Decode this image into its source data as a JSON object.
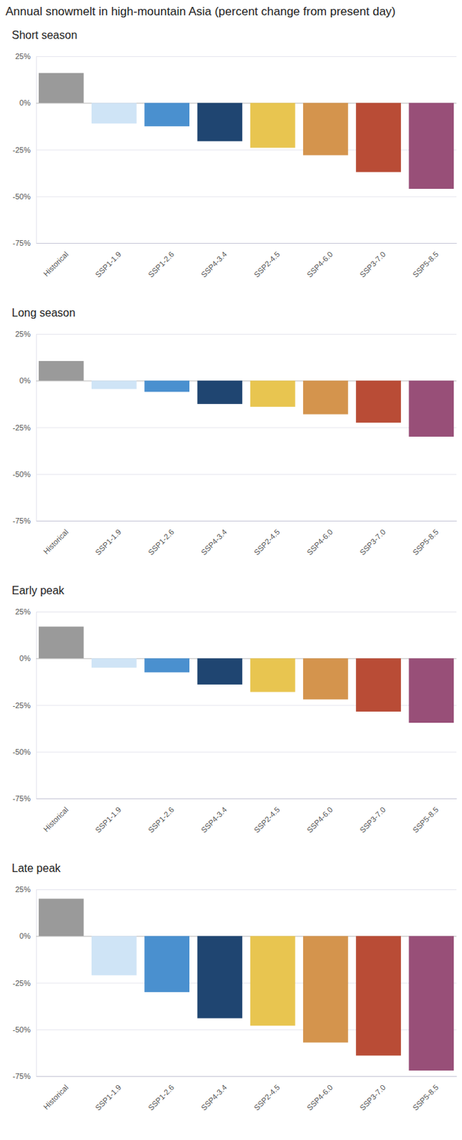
{
  "title": "Annual snowmelt in high-mountain Asia (percent change from present day)",
  "chart_data": [
    {
      "type": "bar",
      "title": "Short season",
      "categories": [
        "Historical",
        "SSP1-1.9",
        "SSP1-2.6",
        "SSP4-3.4",
        "SSP2-4.5",
        "SSP4-6.0",
        "SSP3-7.0",
        "SSP5-8.5"
      ],
      "values": [
        16,
        -11,
        -12.5,
        -20.5,
        -24,
        -28,
        -37,
        -46
      ],
      "colors": [
        "#9a9a9a",
        "#cfe4f6",
        "#4a90cf",
        "#1f4571",
        "#e8c550",
        "#d4944d",
        "#b94c36",
        "#984f78"
      ],
      "ylim": [
        -75,
        25
      ],
      "yticks": [
        {
          "value": 25,
          "label": "25%"
        },
        {
          "value": 0,
          "label": "0%"
        },
        {
          "value": -25,
          "label": "-25%"
        },
        {
          "value": -50,
          "label": "-50%"
        },
        {
          "value": -75,
          "label": "-75%"
        }
      ],
      "grid": true
    },
    {
      "type": "bar",
      "title": "Long season",
      "categories": [
        "Historical",
        "SSP1-1.9",
        "SSP1-2.6",
        "SSP4-3.4",
        "SSP2-4.5",
        "SSP4-6.0",
        "SSP3-7.0",
        "SSP5-8.5"
      ],
      "values": [
        10.5,
        -4.5,
        -6,
        -12.5,
        -14,
        -18,
        -22.5,
        -30
      ],
      "colors": [
        "#9a9a9a",
        "#cfe4f6",
        "#4a90cf",
        "#1f4571",
        "#e8c550",
        "#d4944d",
        "#b94c36",
        "#984f78"
      ],
      "ylim": [
        -75,
        25
      ],
      "yticks": [
        {
          "value": 25,
          "label": "25%"
        },
        {
          "value": 0,
          "label": "0%"
        },
        {
          "value": -25,
          "label": "-25%"
        },
        {
          "value": -50,
          "label": "-50%"
        },
        {
          "value": -75,
          "label": "-75%"
        }
      ],
      "grid": true
    },
    {
      "type": "bar",
      "title": "Early peak",
      "categories": [
        "Historical",
        "SSP1-1.9",
        "SSP1-2.6",
        "SSP4-3.4",
        "SSP2-4.5",
        "SSP4-6.0",
        "SSP3-7.0",
        "SSP5-8.5"
      ],
      "values": [
        17,
        -5,
        -7.5,
        -14,
        -18,
        -22,
        -28.5,
        -34.5
      ],
      "colors": [
        "#9a9a9a",
        "#cfe4f6",
        "#4a90cf",
        "#1f4571",
        "#e8c550",
        "#d4944d",
        "#b94c36",
        "#984f78"
      ],
      "ylim": [
        -75,
        25
      ],
      "yticks": [
        {
          "value": 25,
          "label": "25%"
        },
        {
          "value": 0,
          "label": "0%"
        },
        {
          "value": -25,
          "label": "-25%"
        },
        {
          "value": -50,
          "label": "-50%"
        },
        {
          "value": -75,
          "label": "-75%"
        }
      ],
      "grid": true
    },
    {
      "type": "bar",
      "title": "Late peak",
      "categories": [
        "Historical",
        "SSP1-1.9",
        "SSP1-2.6",
        "SSP4-3.4",
        "SSP2-4.5",
        "SSP4-6.0",
        "SSP3-7.0",
        "SSP5-8.5"
      ],
      "values": [
        20,
        -21,
        -30,
        -44,
        -48,
        -57,
        -64,
        -72
      ],
      "colors": [
        "#9a9a9a",
        "#cfe4f6",
        "#4a90cf",
        "#1f4571",
        "#e8c550",
        "#d4944d",
        "#b94c36",
        "#984f78"
      ],
      "ylim": [
        -75,
        25
      ],
      "yticks": [
        {
          "value": 25,
          "label": "25%"
        },
        {
          "value": 0,
          "label": "0%"
        },
        {
          "value": -25,
          "label": "-25%"
        },
        {
          "value": -50,
          "label": "-50%"
        },
        {
          "value": -75,
          "label": "-75%"
        }
      ],
      "grid": true
    }
  ]
}
